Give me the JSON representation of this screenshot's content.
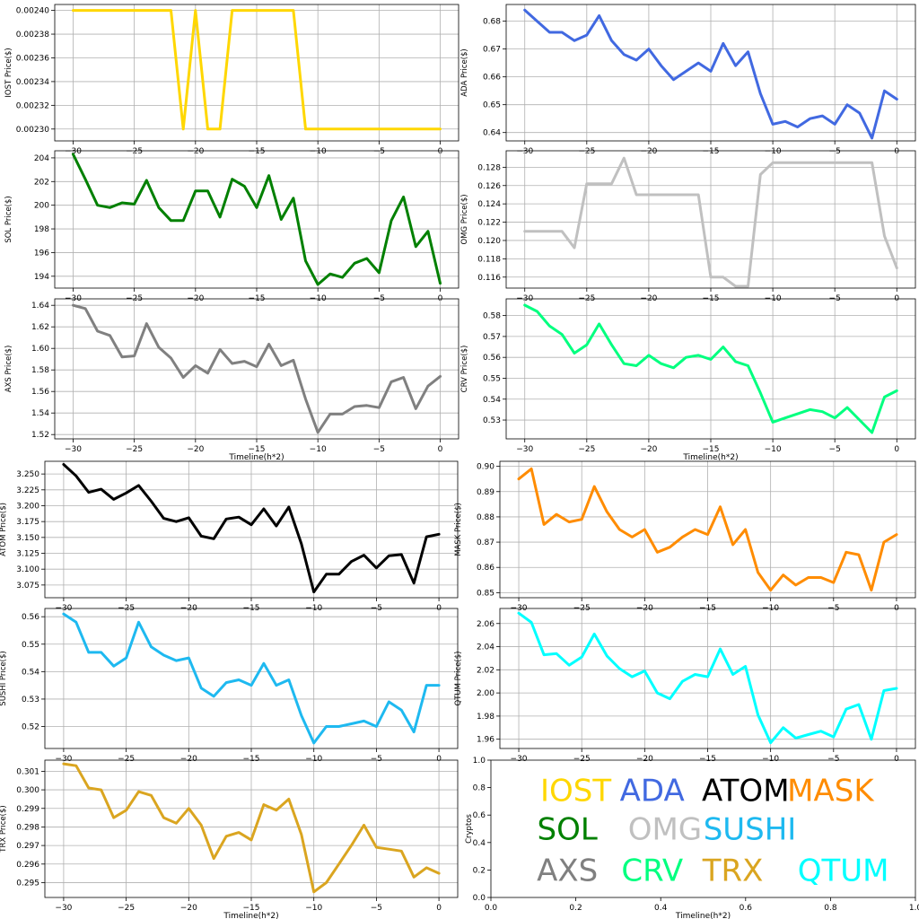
{
  "chart_data": [
    {
      "type": "line",
      "series_name": "IOST",
      "color": "#FFD700",
      "ylabel": "IOST  Price($)",
      "xlabel": "",
      "ylim": [
        0.00229,
        0.002405
      ],
      "yticks": [
        0.0023,
        0.00232,
        0.00234,
        0.00236,
        0.00238,
        0.0024
      ],
      "ytick_labels": [
        "0.00230",
        "0.00232",
        "0.00234",
        "0.00236",
        "0.00238",
        "0.00240"
      ],
      "x": [
        -30,
        -29,
        -28,
        -27,
        -26,
        -25,
        -24,
        -23,
        -22,
        -21,
        -20,
        -19,
        -18,
        -17,
        -16,
        -15,
        -14,
        -13,
        -12,
        -11,
        -10,
        -9,
        -8,
        -7,
        -6,
        -5,
        -4,
        -3,
        -2,
        -1,
        0
      ],
      "values": [
        0.0024,
        0.0024,
        0.0024,
        0.0024,
        0.0024,
        0.0024,
        0.0024,
        0.0024,
        0.0024,
        0.0023,
        0.0024,
        0.0023,
        0.0023,
        0.0024,
        0.0024,
        0.0024,
        0.0024,
        0.0024,
        0.0024,
        0.0023,
        0.0023,
        0.0023,
        0.0023,
        0.0023,
        0.0023,
        0.0023,
        0.0023,
        0.0023,
        0.0023,
        0.0023,
        0.0023
      ]
    },
    {
      "type": "line",
      "series_name": "ADA",
      "color": "#4169E1",
      "ylabel": "ADA  Price($)",
      "xlabel": "",
      "ylim": [
        0.637,
        0.686
      ],
      "yticks": [
        0.64,
        0.65,
        0.66,
        0.67,
        0.68
      ],
      "ytick_labels": [
        "0.64",
        "0.65",
        "0.66",
        "0.67",
        "0.68"
      ],
      "x": [
        -30,
        -29,
        -28,
        -27,
        -26,
        -25,
        -24,
        -23,
        -22,
        -21,
        -20,
        -19,
        -18,
        -17,
        -16,
        -15,
        -14,
        -13,
        -12,
        -11,
        -10,
        -9,
        -8,
        -7,
        -6,
        -5,
        -4,
        -3,
        -2,
        -1,
        0
      ],
      "values": [
        0.684,
        0.68,
        0.676,
        0.676,
        0.673,
        0.675,
        0.682,
        0.673,
        0.668,
        0.666,
        0.67,
        0.664,
        0.659,
        0.662,
        0.665,
        0.662,
        0.672,
        0.664,
        0.669,
        0.654,
        0.643,
        0.644,
        0.642,
        0.645,
        0.646,
        0.643,
        0.65,
        0.647,
        0.638,
        0.655,
        0.652
      ]
    },
    {
      "type": "line",
      "series_name": "SOL",
      "color": "#008000",
      "ylabel": "SOL Price($)",
      "xlabel": "",
      "ylim": [
        193.0,
        204.6
      ],
      "yticks": [
        194,
        196,
        198,
        200,
        202,
        204
      ],
      "ytick_labels": [
        "194",
        "196",
        "198",
        "200",
        "202",
        "204"
      ],
      "x": [
        -30,
        -29,
        -28,
        -27,
        -26,
        -25,
        -24,
        -23,
        -22,
        -21,
        -20,
        -19,
        -18,
        -17,
        -16,
        -15,
        -14,
        -13,
        -12,
        -11,
        -10,
        -9,
        -8,
        -7,
        -6,
        -5,
        -4,
        -3,
        -2,
        -1,
        0
      ],
      "values": [
        204.3,
        202.2,
        200.0,
        199.8,
        200.2,
        200.1,
        202.1,
        199.8,
        198.7,
        198.7,
        201.2,
        201.2,
        199.0,
        202.2,
        201.6,
        199.8,
        202.5,
        198.8,
        200.6,
        195.3,
        193.3,
        194.2,
        193.9,
        195.1,
        195.5,
        194.3,
        198.7,
        200.7,
        196.5,
        197.8,
        193.4
      ]
    },
    {
      "type": "line",
      "series_name": "OMG",
      "color": "#C0C0C0",
      "ylabel": "OMG  Price($)",
      "xlabel": "",
      "ylim": [
        0.1148,
        0.1298
      ],
      "yticks": [
        0.116,
        0.118,
        0.12,
        0.122,
        0.124,
        0.126,
        0.128
      ],
      "ytick_labels": [
        "0.116",
        "0.118",
        "0.120",
        "0.122",
        "0.124",
        "0.126",
        "0.128"
      ],
      "x": [
        -30,
        -29,
        -28,
        -27,
        -26,
        -25,
        -24,
        -23,
        -22,
        -21,
        -20,
        -19,
        -18,
        -17,
        -16,
        -15,
        -14,
        -13,
        -12,
        -11,
        -10,
        -9,
        -8,
        -7,
        -6,
        -5,
        -4,
        -3,
        -2,
        -1,
        0
      ],
      "values": [
        0.121,
        0.121,
        0.121,
        0.121,
        0.1192,
        0.1262,
        0.1262,
        0.1262,
        0.129,
        0.125,
        0.125,
        0.125,
        0.125,
        0.125,
        0.125,
        0.116,
        0.116,
        0.115,
        0.115,
        0.1272,
        0.1285,
        0.1285,
        0.1285,
        0.1285,
        0.1285,
        0.1285,
        0.1285,
        0.1285,
        0.1285,
        0.1205,
        0.117
      ]
    },
    {
      "type": "line",
      "series_name": "AXS",
      "color": "#808080",
      "ylabel": "AXS  Price($)",
      "xlabel": "Timeline(h*2)",
      "ylim": [
        1.516,
        1.646
      ],
      "yticks": [
        1.52,
        1.54,
        1.56,
        1.58,
        1.6,
        1.62,
        1.64
      ],
      "ytick_labels": [
        "1.52",
        "1.54",
        "1.56",
        "1.58",
        "1.60",
        "1.62",
        "1.64"
      ],
      "x": [
        -30,
        -29,
        -28,
        -27,
        -26,
        -25,
        -24,
        -23,
        -22,
        -21,
        -20,
        -19,
        -18,
        -17,
        -16,
        -15,
        -14,
        -13,
        -12,
        -11,
        -10,
        -9,
        -8,
        -7,
        -6,
        -5,
        -4,
        -3,
        -2,
        -1,
        0
      ],
      "values": [
        1.64,
        1.637,
        1.616,
        1.612,
        1.592,
        1.593,
        1.623,
        1.601,
        1.591,
        1.573,
        1.584,
        1.577,
        1.599,
        1.586,
        1.588,
        1.583,
        1.604,
        1.584,
        1.589,
        1.553,
        1.522,
        1.539,
        1.539,
        1.546,
        1.547,
        1.545,
        1.569,
        1.573,
        1.544,
        1.565,
        1.574
      ]
    },
    {
      "type": "line",
      "series_name": "CRV",
      "color": "#00FF7F",
      "ylabel": "CRV  Price($)",
      "xlabel": "Timeline(h*2)",
      "ylim": [
        0.521,
        0.588
      ],
      "yticks": [
        0.53,
        0.54,
        0.55,
        0.56,
        0.57,
        0.58
      ],
      "ytick_labels": [
        "0.53",
        "0.54",
        "0.55",
        "0.56",
        "0.57",
        "0.58"
      ],
      "x": [
        -30,
        -29,
        -28,
        -27,
        -26,
        -25,
        -24,
        -23,
        -22,
        -21,
        -20,
        -19,
        -18,
        -17,
        -16,
        -15,
        -14,
        -13,
        -12,
        -11,
        -10,
        -9,
        -8,
        -7,
        -6,
        -5,
        -4,
        -3,
        -2,
        -1,
        0
      ],
      "values": [
        0.585,
        0.582,
        0.575,
        0.571,
        0.562,
        0.566,
        0.576,
        0.566,
        0.557,
        0.556,
        0.561,
        0.557,
        0.555,
        0.56,
        0.561,
        0.559,
        0.565,
        0.558,
        0.556,
        0.543,
        0.529,
        0.531,
        0.533,
        0.535,
        0.534,
        0.531,
        0.536,
        0.53,
        0.524,
        0.541,
        0.544
      ]
    },
    {
      "type": "line",
      "series_name": "ATOM",
      "color": "#000000",
      "ylabel": "ATOM  Price($)",
      "xlabel": "",
      "ylim": [
        3.055,
        3.27
      ],
      "yticks": [
        3.075,
        3.1,
        3.125,
        3.15,
        3.175,
        3.2,
        3.225,
        3.25
      ],
      "ytick_labels": [
        "3.075",
        "3.100",
        "3.125",
        "3.150",
        "3.175",
        "3.200",
        "3.225",
        "3.250"
      ],
      "x": [
        -30,
        -29,
        -28,
        -27,
        -26,
        -25,
        -24,
        -23,
        -22,
        -21,
        -20,
        -19,
        -18,
        -17,
        -16,
        -15,
        -14,
        -13,
        -12,
        -11,
        -10,
        -9,
        -8,
        -7,
        -6,
        -5,
        -4,
        -3,
        -2,
        -1,
        0
      ],
      "values": [
        3.265,
        3.247,
        3.221,
        3.226,
        3.21,
        3.22,
        3.232,
        3.207,
        3.18,
        3.175,
        3.181,
        3.152,
        3.148,
        3.179,
        3.182,
        3.17,
        3.195,
        3.168,
        3.198,
        3.14,
        3.064,
        3.092,
        3.092,
        3.112,
        3.122,
        3.102,
        3.121,
        3.123,
        3.078,
        3.151,
        3.155
      ]
    },
    {
      "type": "line",
      "series_name": "MASK",
      "color": "#FF8C00",
      "ylabel": "MASK  Price($)",
      "xlabel": "",
      "ylim": [
        0.848,
        0.902
      ],
      "yticks": [
        0.85,
        0.86,
        0.87,
        0.88,
        0.89,
        0.9
      ],
      "ytick_labels": [
        "0.85",
        "0.86",
        "0.87",
        "0.88",
        "0.89",
        "0.90"
      ],
      "x": [
        -30,
        -29,
        -28,
        -27,
        -26,
        -25,
        -24,
        -23,
        -22,
        -21,
        -20,
        -19,
        -18,
        -17,
        -16,
        -15,
        -14,
        -13,
        -12,
        -11,
        -10,
        -9,
        -8,
        -7,
        -6,
        -5,
        -4,
        -3,
        -2,
        -1,
        0
      ],
      "values": [
        0.895,
        0.899,
        0.877,
        0.881,
        0.878,
        0.879,
        0.892,
        0.882,
        0.875,
        0.872,
        0.875,
        0.866,
        0.868,
        0.872,
        0.875,
        0.873,
        0.884,
        0.869,
        0.875,
        0.858,
        0.851,
        0.857,
        0.853,
        0.856,
        0.856,
        0.854,
        0.866,
        0.865,
        0.851,
        0.87,
        0.873
      ]
    },
    {
      "type": "line",
      "series_name": "SUSHI",
      "color": "#1EB9F0",
      "ylabel": "SUSHI  Price($)",
      "xlabel": "",
      "ylim": [
        0.512,
        0.563
      ],
      "yticks": [
        0.52,
        0.53,
        0.54,
        0.55,
        0.56
      ],
      "ytick_labels": [
        "0.52",
        "0.53",
        "0.54",
        "0.55",
        "0.56"
      ],
      "x": [
        -30,
        -29,
        -28,
        -27,
        -26,
        -25,
        -24,
        -23,
        -22,
        -21,
        -20,
        -19,
        -18,
        -17,
        -16,
        -15,
        -14,
        -13,
        -12,
        -11,
        -10,
        -9,
        -8,
        -7,
        -6,
        -5,
        -4,
        -3,
        -2,
        -1,
        0
      ],
      "values": [
        0.561,
        0.558,
        0.547,
        0.547,
        0.542,
        0.545,
        0.558,
        0.549,
        0.546,
        0.544,
        0.545,
        0.534,
        0.531,
        0.536,
        0.537,
        0.535,
        0.543,
        0.535,
        0.537,
        0.524,
        0.514,
        0.52,
        0.52,
        0.521,
        0.522,
        0.52,
        0.529,
        0.526,
        0.518,
        0.535,
        0.535
      ]
    },
    {
      "type": "line",
      "series_name": "QTUM",
      "color": "#00FFFF",
      "ylabel": "QTUM  Price($)",
      "xlabel": "",
      "ylim": [
        1.952,
        2.073
      ],
      "yticks": [
        1.96,
        1.98,
        2.0,
        2.02,
        2.04,
        2.06
      ],
      "ytick_labels": [
        "1.96",
        "1.98",
        "2.00",
        "2.02",
        "2.04",
        "2.06"
      ],
      "x": [
        -30,
        -29,
        -28,
        -27,
        -26,
        -25,
        -24,
        -23,
        -22,
        -21,
        -20,
        -19,
        -18,
        -17,
        -16,
        -15,
        -14,
        -13,
        -12,
        -11,
        -10,
        -9,
        -8,
        -7,
        -6,
        -5,
        -4,
        -3,
        -2,
        -1,
        0
      ],
      "values": [
        2.069,
        2.061,
        2.033,
        2.034,
        2.024,
        2.031,
        2.051,
        2.032,
        2.021,
        2.014,
        2.019,
        2.0,
        1.995,
        2.01,
        2.016,
        2.014,
        2.038,
        2.016,
        2.023,
        1.981,
        1.957,
        1.97,
        1.961,
        1.964,
        1.967,
        1.962,
        1.986,
        1.99,
        1.96,
        2.002,
        2.004
      ]
    },
    {
      "type": "line",
      "series_name": "TRX",
      "color": "#DAA520",
      "ylabel": "TRX  Price($)",
      "xlabel": "Timeline(h*2)",
      "ylim": [
        0.2942,
        0.3016
      ],
      "yticks": [
        0.295,
        0.296,
        0.297,
        0.298,
        0.299,
        0.3,
        0.301
      ],
      "ytick_labels": [
        "0.295",
        "0.296",
        "0.297",
        "0.298",
        "0.299",
        "0.300",
        "0.301"
      ],
      "x": [
        -30,
        -29,
        -28,
        -27,
        -26,
        -25,
        -24,
        -23,
        -22,
        -21,
        -20,
        -19,
        -18,
        -17,
        -16,
        -15,
        -14,
        -13,
        -12,
        -11,
        -10,
        -9,
        -8,
        -7,
        -6,
        -5,
        -4,
        -3,
        -2,
        -1,
        0
      ],
      "values": [
        0.3014,
        0.3013,
        0.3001,
        0.3,
        0.2985,
        0.2989,
        0.2999,
        0.2997,
        0.2985,
        0.2982,
        0.299,
        0.2981,
        0.2963,
        0.2975,
        0.2977,
        0.2973,
        0.2992,
        0.2989,
        0.2995,
        0.2976,
        0.2945,
        0.295,
        0.296,
        0.297,
        0.2981,
        0.2969,
        0.2968,
        0.2967,
        0.2953,
        0.2958,
        0.2955
      ]
    },
    {
      "type": "table",
      "ylabel": "Cryptos",
      "xlabel": "Timeline(h*2)",
      "xlim": [
        0,
        1
      ],
      "ylim": [
        0,
        1
      ],
      "xticks": [
        0.0,
        0.2,
        0.4,
        0.6,
        0.8,
        1.0
      ],
      "xtick_labels": [
        "0.0",
        "0.2",
        "0.4",
        "0.6",
        "0.8",
        "1.0"
      ],
      "yticks": [
        0.0,
        0.2,
        0.4,
        0.6,
        0.8,
        1.0
      ],
      "ytick_labels": [
        "0.0",
        "0.2",
        "0.4",
        "0.6",
        "0.8",
        "1.0"
      ],
      "entries": [
        {
          "label": "IOST",
          "color": "#FFD700"
        },
        {
          "label": "ADA",
          "color": "#4169E1"
        },
        {
          "label": "ATOM",
          "color": "#000000"
        },
        {
          "label": "MASK",
          "color": "#FF8C00"
        },
        {
          "label": "SOL",
          "color": "#008000"
        },
        {
          "label": "OMG",
          "color": "#C0C0C0"
        },
        {
          "label": "SUSHI",
          "color": "#1EB9F0"
        },
        {
          "label": "AXS",
          "color": "#808080"
        },
        {
          "label": "CRV",
          "color": "#00FF7F"
        },
        {
          "label": "TRX",
          "color": "#DAA520"
        },
        {
          "label": "QTUM",
          "color": "#00FFFF"
        }
      ]
    }
  ],
  "x_axis": {
    "xlim": [
      -31.5,
      1.5
    ],
    "xticks": [
      -30,
      -25,
      -20,
      -15,
      -10,
      -5,
      0
    ],
    "xtick_labels": [
      "−30",
      "−25",
      "−20",
      "−15",
      "−10",
      "−5",
      "0"
    ]
  }
}
